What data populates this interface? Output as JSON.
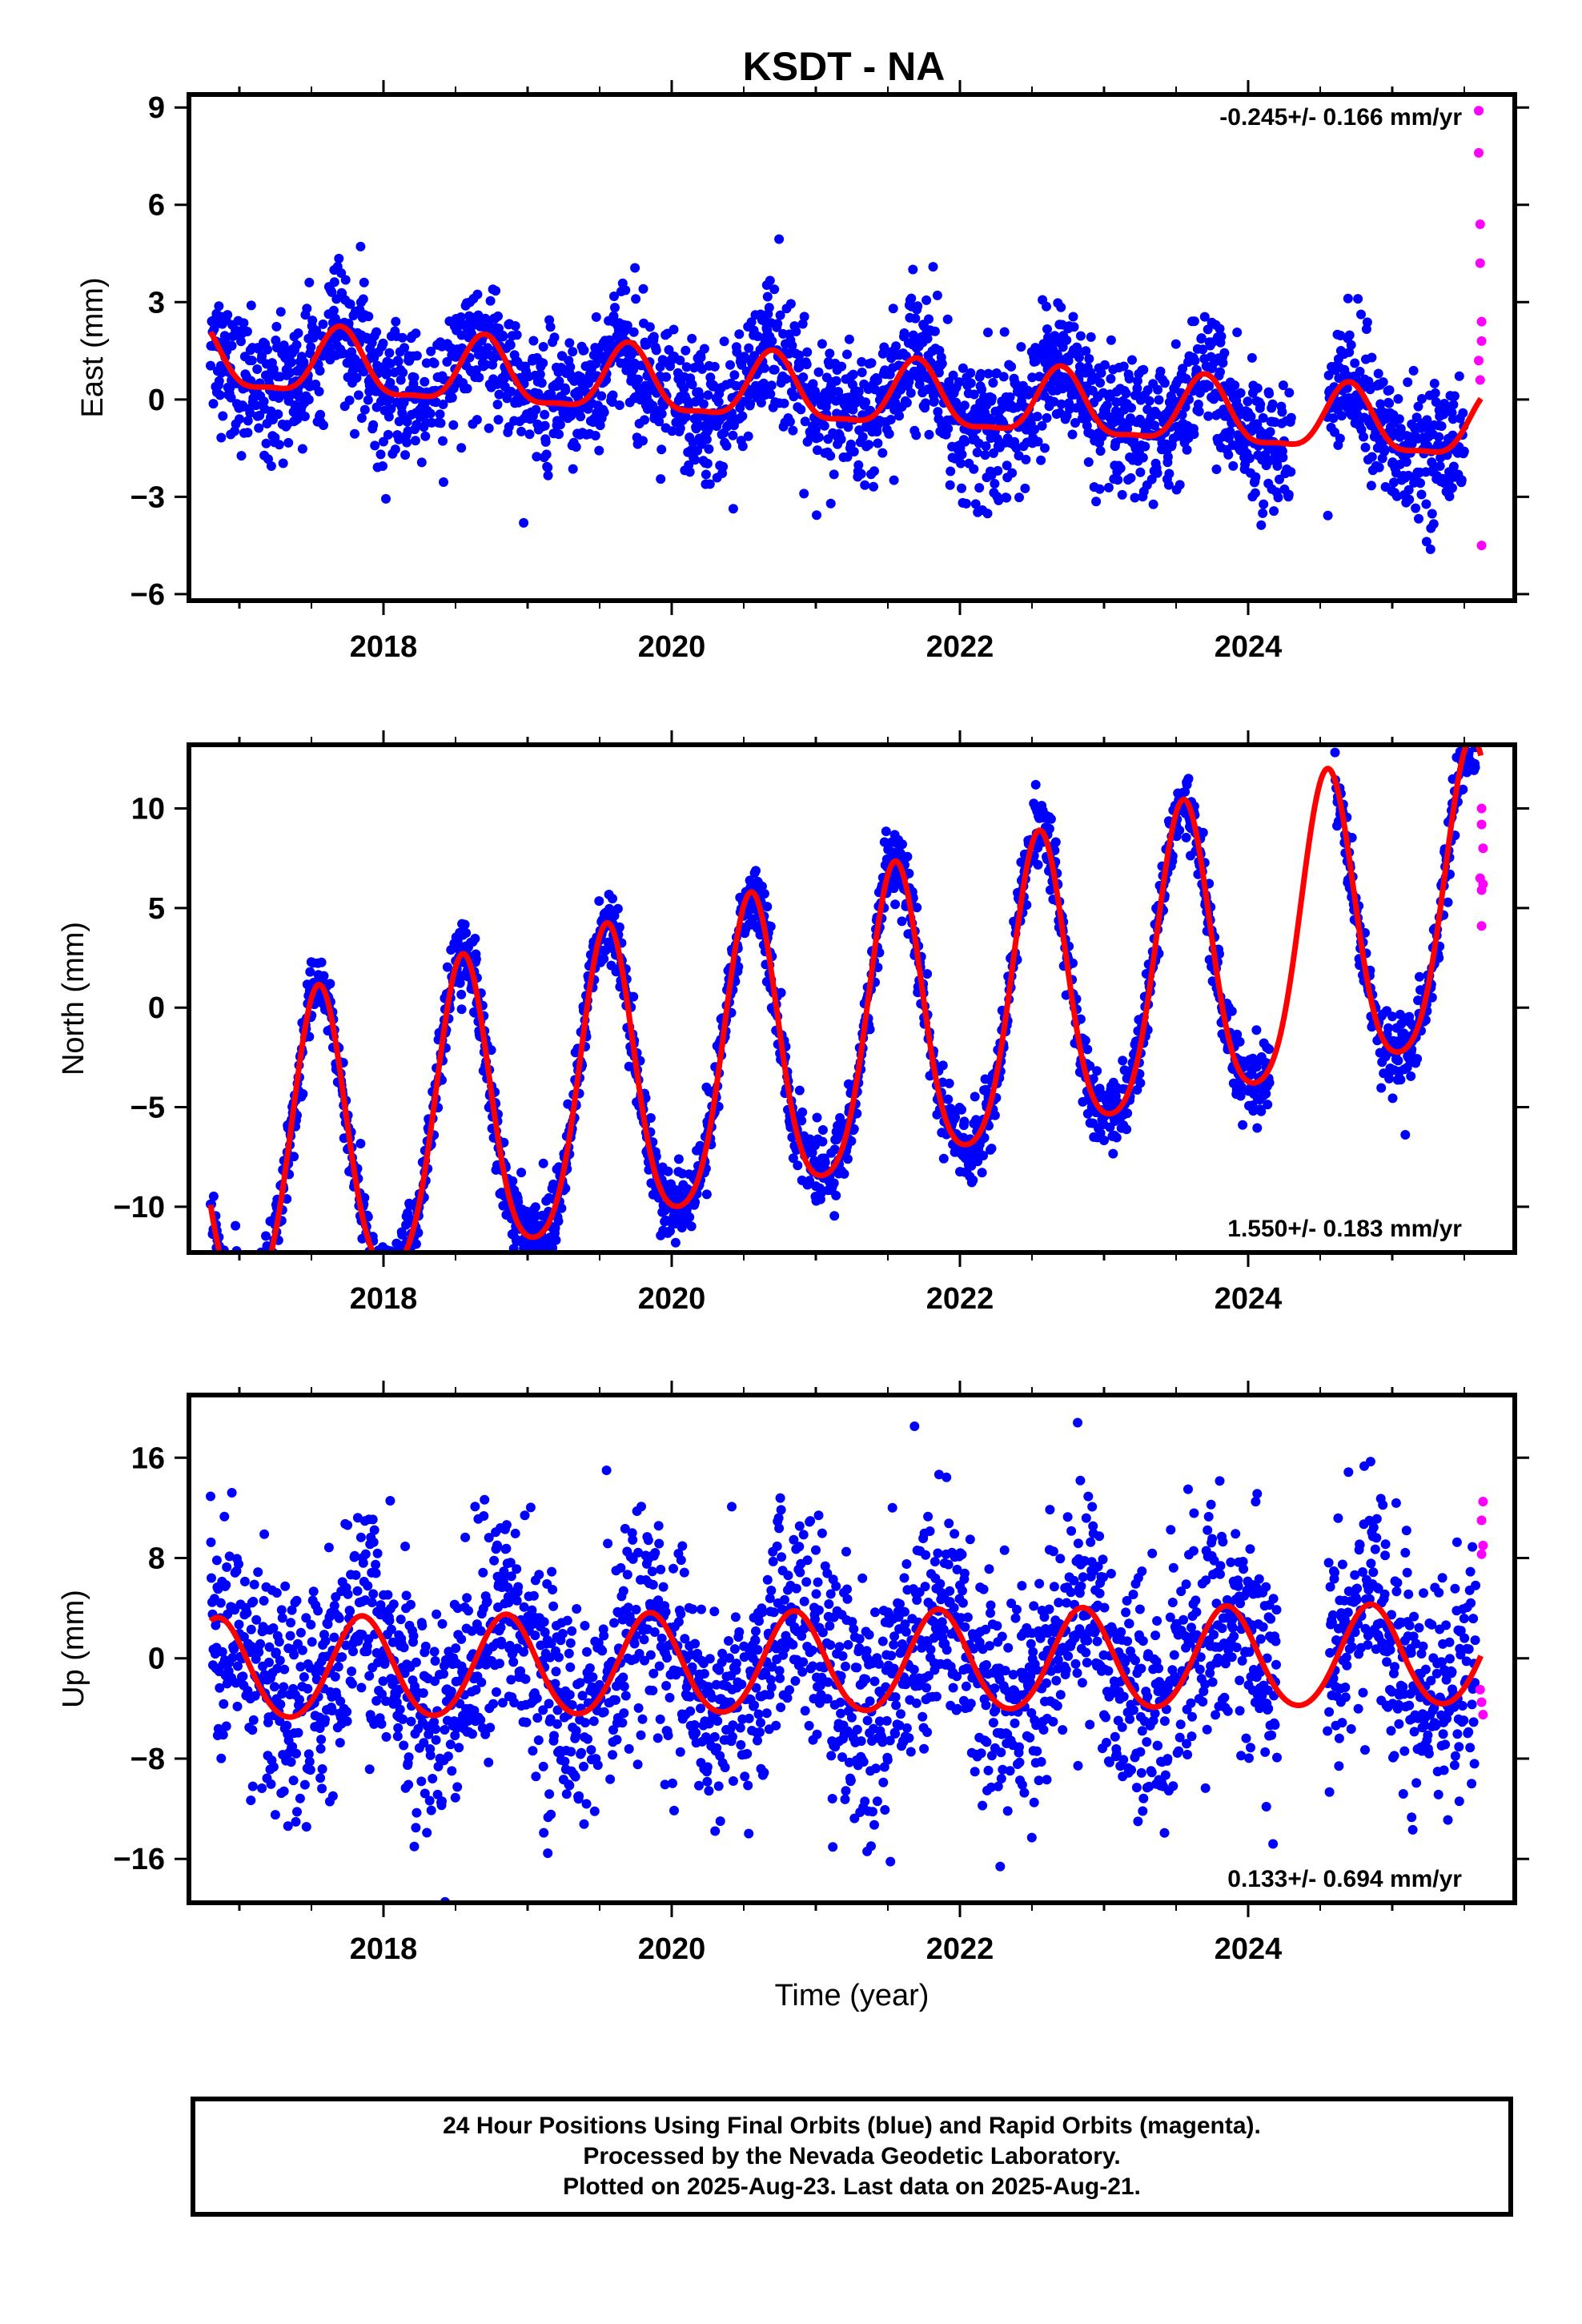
{
  "figure": {
    "title": "KSDT - NA",
    "xlabel": "Time (year)",
    "caption": [
      "24 Hour Positions Using Final Orbits (blue) and Rapid Orbits (magenta).",
      "Processed by the Nevada Geodetic Laboratory.",
      "Plotted on 2025-Aug-23. Last data on 2025-Aug-21."
    ]
  },
  "colors": {
    "final_orbits": "#0000ff",
    "rapid_orbits": "#ff00ff",
    "model_fit": "#ff0000",
    "frame": "#000000"
  },
  "chart_data": [
    {
      "type": "scatter",
      "component": "east",
      "ylabel": "East (mm)",
      "rate_label": "-0.245+/- 0.166 mm/yr",
      "rate_position": "top-right",
      "xlim": [
        2016.65,
        2025.85
      ],
      "ylim": [
        -6.2,
        9.4
      ],
      "xticks": [
        2018,
        2020,
        2022,
        2024
      ],
      "yticks": [
        -6,
        -3,
        0,
        3,
        6,
        9
      ],
      "grid": false,
      "model": {
        "rate": -0.245,
        "annual_amplitude": 1.0,
        "annual_peak": 0.7,
        "semiannual_amplitude": 0.3,
        "offset_at_2021": 0.15,
        "scatter": 1.0
      },
      "series": [
        {
          "name": "Final Orbits (blue)",
          "x_start": 2016.8,
          "x_end": 2025.5,
          "gaps": [
            [
              2024.3,
              2024.55
            ]
          ]
        },
        {
          "name": "Rapid Orbits (magenta)",
          "points": [
            [
              2025.6,
              8.9
            ],
            [
              2025.6,
              7.6
            ],
            [
              2025.61,
              5.4
            ],
            [
              2025.61,
              4.2
            ],
            [
              2025.62,
              2.4
            ],
            [
              2025.62,
              1.8
            ],
            [
              2025.6,
              1.2
            ],
            [
              2025.61,
              0.6
            ],
            [
              2025.62,
              -4.5
            ]
          ]
        },
        {
          "name": "Model Fit",
          "x_start": 2016.8,
          "x_end": 2025.62
        }
      ]
    },
    {
      "type": "scatter",
      "component": "north",
      "ylabel": "North (mm)",
      "rate_label": "1.550+/- 0.183 mm/yr",
      "rate_position": "bottom-right",
      "xlim": [
        2016.65,
        2025.85
      ],
      "ylim": [
        -12.3,
        13.2
      ],
      "xticks": [
        2018,
        2020,
        2022,
        2024
      ],
      "yticks": [
        -10,
        -5,
        0,
        5,
        10
      ],
      "grid": false,
      "model": {
        "rate": 1.55,
        "annual_amplitude": 7.5,
        "annual_peak": 0.55,
        "semiannual_amplitude": 1.2,
        "offset_at_2021": -2.2,
        "scatter": 0.9
      },
      "series": [
        {
          "name": "Final Orbits (blue)",
          "x_start": 2016.8,
          "x_end": 2025.58,
          "gaps": [
            [
              2024.15,
              2024.6
            ]
          ]
        },
        {
          "name": "Rapid Orbits (magenta)",
          "points": [
            [
              2025.62,
              10.0
            ],
            [
              2025.62,
              9.2
            ],
            [
              2025.63,
              8.0
            ],
            [
              2025.61,
              6.5
            ],
            [
              2025.62,
              5.9
            ],
            [
              2025.63,
              6.2
            ],
            [
              2025.62,
              4.1
            ]
          ]
        },
        {
          "name": "Model Fit",
          "x_start": 2016.8,
          "x_end": 2025.62
        }
      ]
    },
    {
      "type": "scatter",
      "component": "up",
      "ylabel": "Up (mm)",
      "rate_label": "0.133+/- 0.694 mm/yr",
      "rate_position": "bottom-right",
      "xlim": [
        2016.65,
        2025.85
      ],
      "ylim": [
        -19.5,
        21
      ],
      "xticks": [
        2018,
        2020,
        2022,
        2024
      ],
      "yticks": [
        -16,
        -8,
        0,
        8,
        16
      ],
      "grid": false,
      "model": {
        "rate": 0.133,
        "annual_amplitude": 4.0,
        "annual_peak": 0.85,
        "semiannual_amplitude": 0.3,
        "offset_at_2021": -0.5,
        "scatter": 4.5
      },
      "series": [
        {
          "name": "Final Orbits (blue)",
          "x_start": 2016.8,
          "x_end": 2025.58,
          "gaps": [
            [
              2024.2,
              2024.55
            ]
          ]
        },
        {
          "name": "Rapid Orbits (magenta)",
          "points": [
            [
              2025.63,
              12.5
            ],
            [
              2025.62,
              11.0
            ],
            [
              2025.63,
              9.0
            ],
            [
              2025.62,
              8.3
            ],
            [
              2025.61,
              -2.5
            ],
            [
              2025.62,
              -3.5
            ],
            [
              2025.63,
              -4.5
            ]
          ]
        },
        {
          "name": "Model Fit",
          "x_start": 2016.8,
          "x_end": 2025.62
        }
      ]
    }
  ]
}
